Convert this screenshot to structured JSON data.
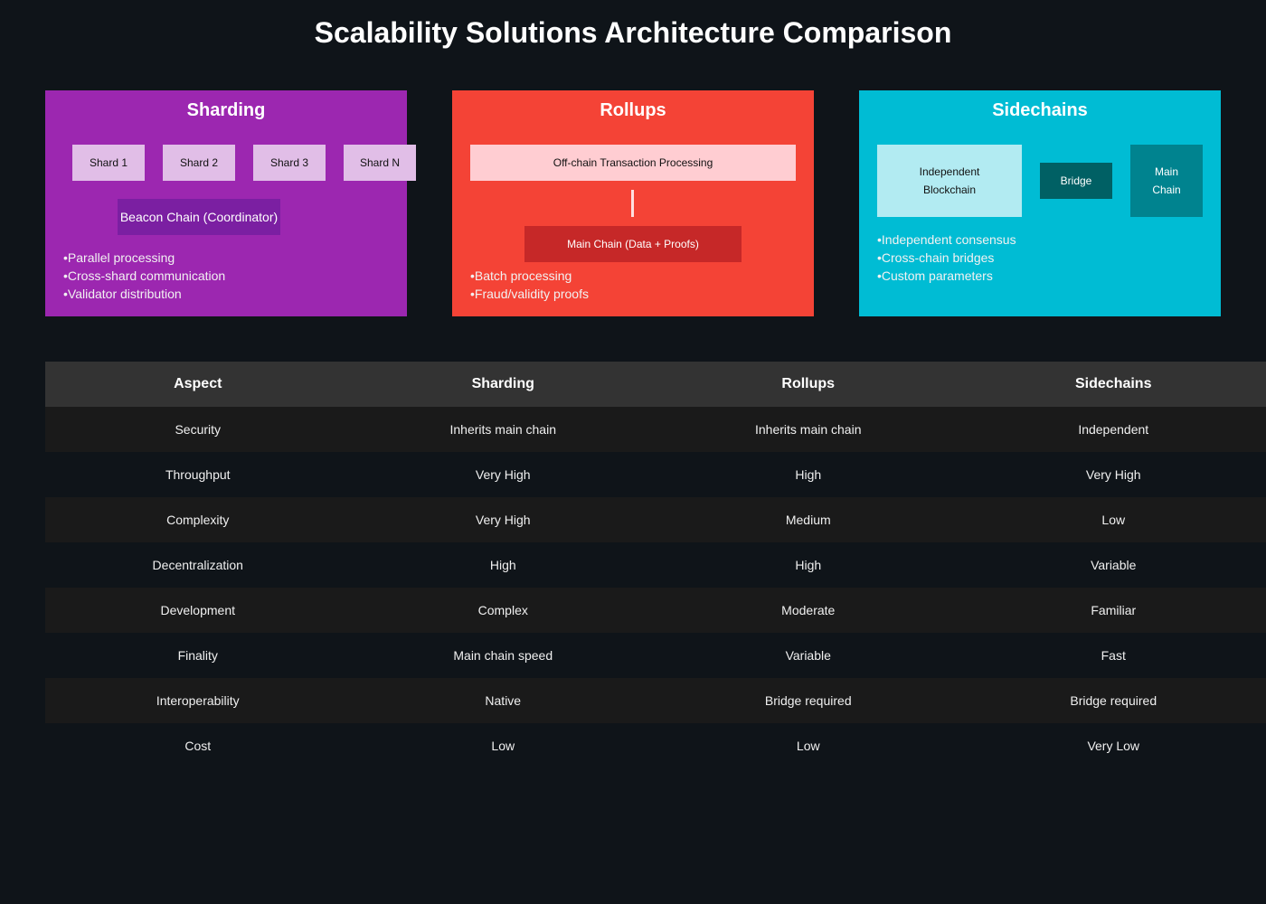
{
  "title": "Scalability Solutions Architecture Comparison",
  "sharding": {
    "title": "Sharding",
    "color": "#9c27b0",
    "shards": [
      "Shard 1",
      "Shard 2",
      "Shard 3",
      "Shard N"
    ],
    "beacon": "Beacon Chain (Coordinator)",
    "bullets": [
      "Parallel processing",
      "Cross-shard communication",
      "Validator distribution"
    ]
  },
  "rollups": {
    "title": "Rollups",
    "color": "#f44336",
    "offchain": "Off-chain Transaction Processing",
    "mainchain": "Main Chain (Data + Proofs)",
    "bullets": [
      "Batch processing",
      "Fraud/validity proofs"
    ]
  },
  "sidechains": {
    "title": "Sidechains",
    "color": "#00bcd4",
    "independent": [
      "Independent",
      "Blockchain"
    ],
    "bridge": "Bridge",
    "mainchain": [
      "Main",
      "Chain"
    ],
    "bullets": [
      "Independent consensus",
      "Cross-chain bridges",
      "Custom parameters"
    ]
  },
  "table": {
    "headers": [
      "Aspect",
      "Sharding",
      "Rollups",
      "Sidechains"
    ],
    "rows": [
      [
        "Security",
        "Inherits main chain",
        "Inherits main chain",
        "Independent"
      ],
      [
        "Throughput",
        "Very High",
        "High",
        "Very High"
      ],
      [
        "Complexity",
        "Very High",
        "Medium",
        "Low"
      ],
      [
        "Decentralization",
        "High",
        "High",
        "Variable"
      ],
      [
        "Development",
        "Complex",
        "Moderate",
        "Familiar"
      ],
      [
        "Finality",
        "Main chain speed",
        "Variable",
        "Fast"
      ],
      [
        "Interoperability",
        "Native",
        "Bridge required",
        "Bridge required"
      ],
      [
        "Cost",
        "Low",
        "Low",
        "Very Low"
      ]
    ]
  }
}
